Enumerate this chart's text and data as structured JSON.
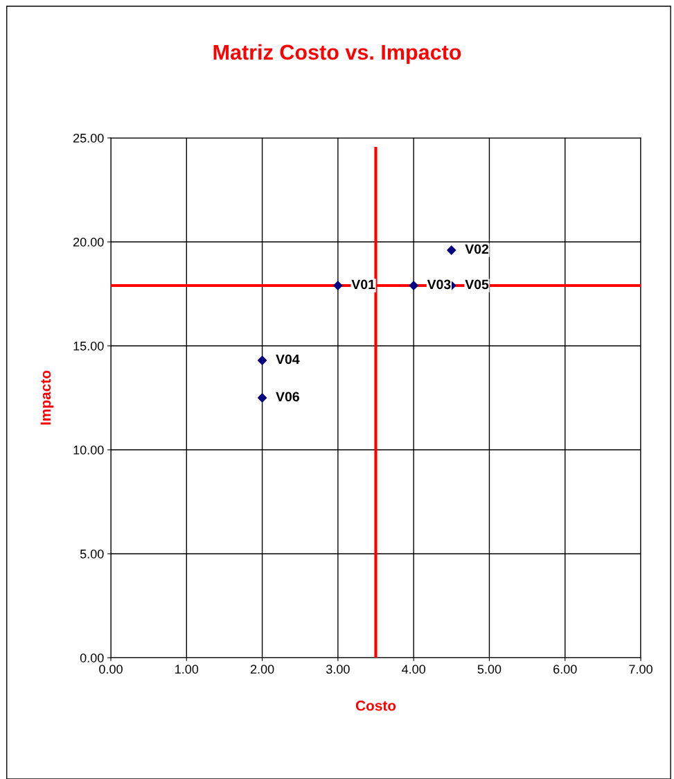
{
  "chart_data": {
    "type": "scatter",
    "title": "Matriz Costo vs. Impacto",
    "xlabel": "Costo",
    "ylabel": "Impacto",
    "xlim": [
      0,
      7
    ],
    "xticks": [
      {
        "value": 0,
        "label": "0.00"
      },
      {
        "value": 1,
        "label": "1.00"
      },
      {
        "value": 2,
        "label": "2.00"
      },
      {
        "value": 3,
        "label": "3.00"
      },
      {
        "value": 4,
        "label": "4.00"
      },
      {
        "value": 5,
        "label": "5.00"
      },
      {
        "value": 6,
        "label": "6.00"
      },
      {
        "value": 7,
        "label": "7.00"
      }
    ],
    "ylim": [
      0,
      25
    ],
    "yticks": [
      {
        "value": 0,
        "label": "0.00"
      },
      {
        "value": 5,
        "label": "5.00"
      },
      {
        "value": 10,
        "label": "10.00"
      },
      {
        "value": 15,
        "label": "15.00"
      },
      {
        "value": 20,
        "label": "20.00"
      },
      {
        "value": 25,
        "label": "25.00"
      }
    ],
    "grid": true,
    "series": [
      {
        "color": "#000080",
        "marker": "diamond",
        "x": [
          3.0,
          4.5,
          4.0,
          2.0,
          4.5,
          2.0
        ],
        "values": [
          17.9,
          19.6,
          17.9,
          14.3,
          17.9,
          12.5
        ]
      },
      {
        "type": "line",
        "color": "#ff0000",
        "marker": "none",
        "line_style": "solid",
        "x": [
          3.5,
          3.5
        ],
        "values": [
          0,
          24.5
        ]
      },
      {
        "type": "line",
        "color": "#ff0000",
        "marker": "none",
        "line_style": "solid",
        "x": [
          0,
          7
        ],
        "values": [
          17.9,
          17.9
        ]
      }
    ],
    "annotations": [
      {
        "text": "V01",
        "x": 3.0,
        "y": 17.9
      },
      {
        "text": "V02",
        "x": 4.5,
        "y": 19.6
      },
      {
        "text": "V03",
        "x": 4.0,
        "y": 17.9
      },
      {
        "text": "V04",
        "x": 2.0,
        "y": 14.3
      },
      {
        "text": "V05",
        "x": 4.5,
        "y": 17.9
      },
      {
        "text": "V06",
        "x": 2.0,
        "y": 12.5
      }
    ]
  }
}
